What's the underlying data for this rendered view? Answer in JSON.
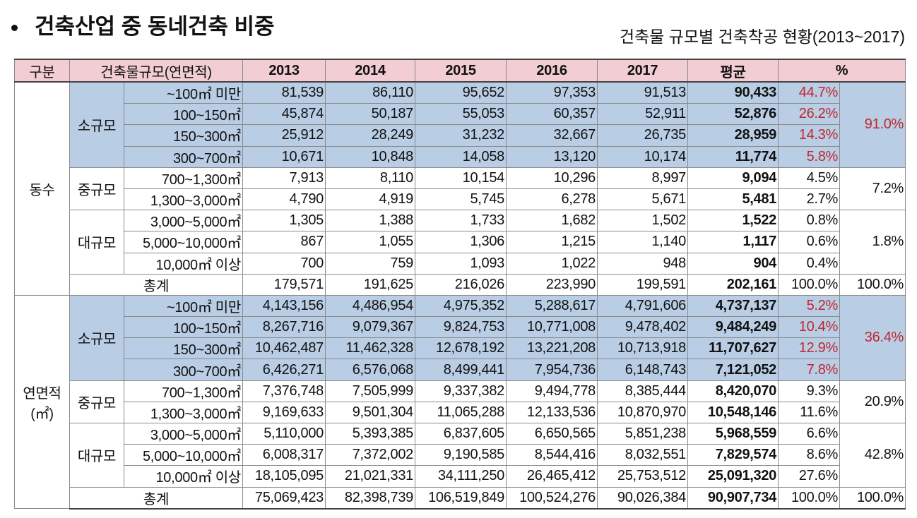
{
  "header": {
    "title": "건축산업 중 동네건축 비중",
    "subtitle": "건축물 규모별 건축착공 현황(2013~2017)"
  },
  "table": {
    "columns": [
      "구분",
      "건축물규모(연면적)",
      "2013",
      "2014",
      "2015",
      "2016",
      "2017",
      "평균",
      "%"
    ],
    "sections": [
      {
        "name": "동수",
        "groups": [
          {
            "name": "소규모",
            "share": "91.0%",
            "rows": [
              {
                "size": "~100㎡ 미만",
                "values": [
                  "81,539",
                  "86,110",
                  "95,652",
                  "97,353",
                  "91,513"
                ],
                "avg": "90,433",
                "pct": "44.7%"
              },
              {
                "size": "100~150㎡",
                "values": [
                  "45,874",
                  "50,187",
                  "55,053",
                  "60,357",
                  "52,911"
                ],
                "avg": "52,876",
                "pct": "26.2%"
              },
              {
                "size": "150~300㎡",
                "values": [
                  "25,912",
                  "28,249",
                  "31,232",
                  "32,667",
                  "26,735"
                ],
                "avg": "28,959",
                "pct": "14.3%"
              },
              {
                "size": "300~700㎡",
                "values": [
                  "10,671",
                  "10,848",
                  "14,058",
                  "13,120",
                  "10,174"
                ],
                "avg": "11,774",
                "pct": "5.8%"
              }
            ]
          },
          {
            "name": "중규모",
            "share": "7.2%",
            "rows": [
              {
                "size": "700~1,300㎡",
                "values": [
                  "7,913",
                  "8,110",
                  "10,154",
                  "10,296",
                  "8,997"
                ],
                "avg": "9,094",
                "pct": "4.5%"
              },
              {
                "size": "1,300~3,000㎡",
                "values": [
                  "4,790",
                  "4,919",
                  "5,745",
                  "6,278",
                  "5,671"
                ],
                "avg": "5,481",
                "pct": "2.7%"
              }
            ]
          },
          {
            "name": "대규모",
            "share": "1.8%",
            "rows": [
              {
                "size": "3,000~5,000㎡",
                "values": [
                  "1,305",
                  "1,388",
                  "1,733",
                  "1,682",
                  "1,502"
                ],
                "avg": "1,522",
                "pct": "0.8%"
              },
              {
                "size": "5,000~10,000㎡",
                "values": [
                  "867",
                  "1,055",
                  "1,306",
                  "1,215",
                  "1,140"
                ],
                "avg": "1,117",
                "pct": "0.6%"
              },
              {
                "size": "10,000㎡ 이상",
                "values": [
                  "700",
                  "759",
                  "1,093",
                  "1,022",
                  "948"
                ],
                "avg": "904",
                "pct": "0.4%"
              }
            ]
          }
        ],
        "total": {
          "label": "총계",
          "values": [
            "179,571",
            "191,625",
            "216,026",
            "223,990",
            "199,591"
          ],
          "avg": "202,161",
          "pct": "100.0%",
          "share": "100.0%"
        }
      },
      {
        "name": "연면적",
        "unit": "(㎡)",
        "groups": [
          {
            "name": "소규모",
            "share": "36.4%",
            "rows": [
              {
                "size": "~100㎡ 미만",
                "values": [
                  "4,143,156",
                  "4,486,954",
                  "4,975,352",
                  "5,288,617",
                  "4,791,606"
                ],
                "avg": "4,737,137",
                "pct": "5.2%"
              },
              {
                "size": "100~150㎡",
                "values": [
                  "8,267,716",
                  "9,079,367",
                  "9,824,753",
                  "10,771,008",
                  "9,478,402"
                ],
                "avg": "9,484,249",
                "pct": "10.4%"
              },
              {
                "size": "150~300㎡",
                "values": [
                  "10,462,487",
                  "11,462,328",
                  "12,678,192",
                  "13,221,208",
                  "10,713,918"
                ],
                "avg": "11,707,627",
                "pct": "12.9%"
              },
              {
                "size": "300~700㎡",
                "values": [
                  "6,426,271",
                  "6,576,068",
                  "8,499,441",
                  "7,954,736",
                  "6,148,743"
                ],
                "avg": "7,121,052",
                "pct": "7.8%"
              }
            ]
          },
          {
            "name": "중규모",
            "share": "20.9%",
            "rows": [
              {
                "size": "700~1,300㎡",
                "values": [
                  "7,376,748",
                  "7,505,999",
                  "9,337,382",
                  "9,494,778",
                  "8,385,444"
                ],
                "avg": "8,420,070",
                "pct": "9.3%"
              },
              {
                "size": "1,300~3,000㎡",
                "values": [
                  "9,169,633",
                  "9,501,304",
                  "11,065,288",
                  "12,133,536",
                  "10,870,970"
                ],
                "avg": "10,548,146",
                "pct": "11.6%"
              }
            ]
          },
          {
            "name": "대규모",
            "share": "42.8%",
            "rows": [
              {
                "size": "3,000~5,000㎡",
                "values": [
                  "5,110,000",
                  "5,393,385",
                  "6,837,605",
                  "6,650,565",
                  "5,851,238"
                ],
                "avg": "5,968,559",
                "pct": "6.6%"
              },
              {
                "size": "5,000~10,000㎡",
                "values": [
                  "6,008,317",
                  "7,372,002",
                  "9,190,585",
                  "8,544,416",
                  "8,032,551"
                ],
                "avg": "7,829,574",
                "pct": "8.6%"
              },
              {
                "size": "10,000㎡ 이상",
                "values": [
                  "18,105,095",
                  "21,021,331",
                  "34,111,250",
                  "26,465,412",
                  "25,753,512"
                ],
                "avg": "25,091,320",
                "pct": "27.6%"
              }
            ]
          }
        ],
        "total": {
          "label": "총계",
          "values": [
            "75,069,423",
            "82,398,739",
            "106,519,849",
            "100,524,276",
            "90,026,384"
          ],
          "avg": "90,907,734",
          "pct": "100.0%",
          "share": "100.0%"
        }
      }
    ]
  }
}
